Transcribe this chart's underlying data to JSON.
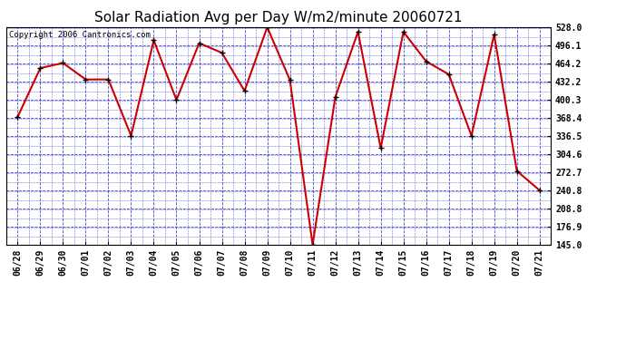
{
  "title": "Solar Radiation Avg per Day W/m2/minute 20060721",
  "copyright": "Copyright 2006 Cantronics.com",
  "dates": [
    "06/28",
    "06/29",
    "06/30",
    "07/01",
    "07/02",
    "07/03",
    "07/04",
    "07/05",
    "07/06",
    "07/07",
    "07/08",
    "07/09",
    "07/10",
    "07/11",
    "07/12",
    "07/13",
    "07/14",
    "07/15",
    "07/16",
    "07/17",
    "07/18",
    "07/19",
    "07/20",
    "07/21"
  ],
  "values": [
    370.0,
    456.0,
    465.0,
    436.0,
    436.0,
    337.0,
    505.0,
    400.0,
    500.0,
    483.0,
    416.0,
    528.0,
    435.0,
    145.0,
    405.0,
    520.0,
    315.0,
    520.0,
    468.0,
    445.0,
    337.0,
    515.0,
    275.0,
    241.0
  ],
  "ylim_min": 145.0,
  "ylim_max": 528.0,
  "yticks": [
    528.0,
    496.1,
    464.2,
    432.2,
    400.3,
    368.4,
    336.5,
    304.6,
    272.7,
    240.8,
    208.8,
    176.9,
    145.0
  ],
  "line_color": "#cc0000",
  "marker_color": "#000000",
  "bg_color": "#ffffff",
  "grid_color": "#3333cc",
  "title_fontsize": 11,
  "tick_fontsize": 7,
  "copyright_fontsize": 6.5
}
